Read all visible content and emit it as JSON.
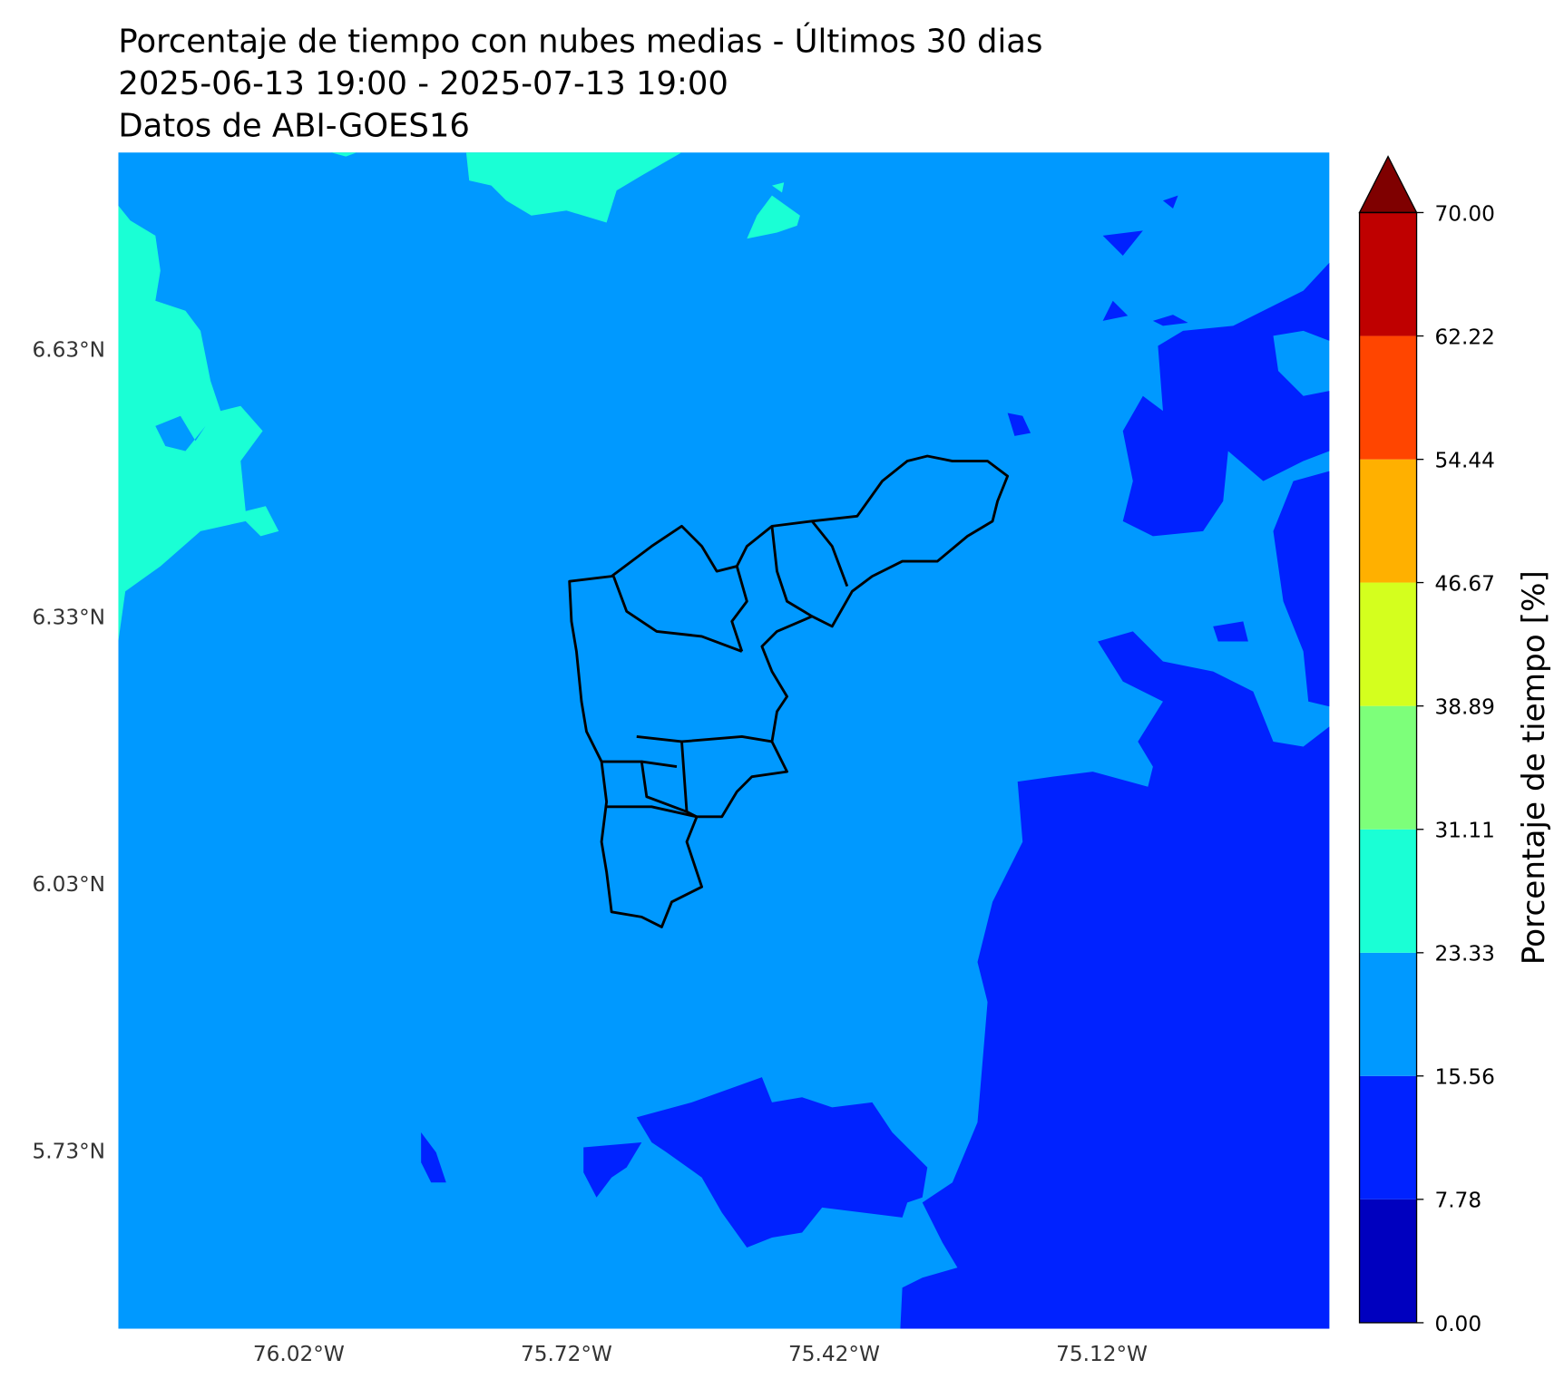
{
  "header": {
    "title_lines": [
      "Porcentaje de tiempo con nubes medias - Últimos 30 dias",
      "2025-06-13 19:00 - 2025-07-13 19:00",
      "Datos de ABI-GOES16"
    ]
  },
  "map": {
    "lat_ticks": [
      {
        "value": 6.63,
        "label": "6.63°N"
      },
      {
        "value": 6.33,
        "label": "6.33°N"
      },
      {
        "value": 6.03,
        "label": "6.03°N"
      },
      {
        "value": 5.73,
        "label": "5.73°N"
      }
    ],
    "lon_ticks": [
      {
        "value": -76.02,
        "label": "76.02°W"
      },
      {
        "value": -75.72,
        "label": "75.72°W"
      },
      {
        "value": -75.42,
        "label": "75.42°W"
      },
      {
        "value": -75.12,
        "label": "75.12°W"
      }
    ]
  },
  "colorbar": {
    "label": "Porcentaje de tiempo [%]",
    "ticks": [
      {
        "value": 0,
        "label": "0.00"
      },
      {
        "value": 7.78,
        "label": "7.78"
      },
      {
        "value": 15.56,
        "label": "15.56"
      },
      {
        "value": 23.33,
        "label": "23.33"
      },
      {
        "value": 31.11,
        "label": "31.11"
      },
      {
        "value": 38.89,
        "label": "38.89"
      },
      {
        "value": 46.67,
        "label": "46.67"
      },
      {
        "value": 54.44,
        "label": "54.44"
      },
      {
        "value": 62.22,
        "label": "62.22"
      },
      {
        "value": 70,
        "label": "70.00"
      }
    ],
    "colors": [
      "#0000bf",
      "#0022ff",
      "#0099ff",
      "#1affd5",
      "#7dff7a",
      "#d4ff1e",
      "#ffb000",
      "#ff4500",
      "#bf0000"
    ],
    "extend_color": "#7f0000"
  }
}
